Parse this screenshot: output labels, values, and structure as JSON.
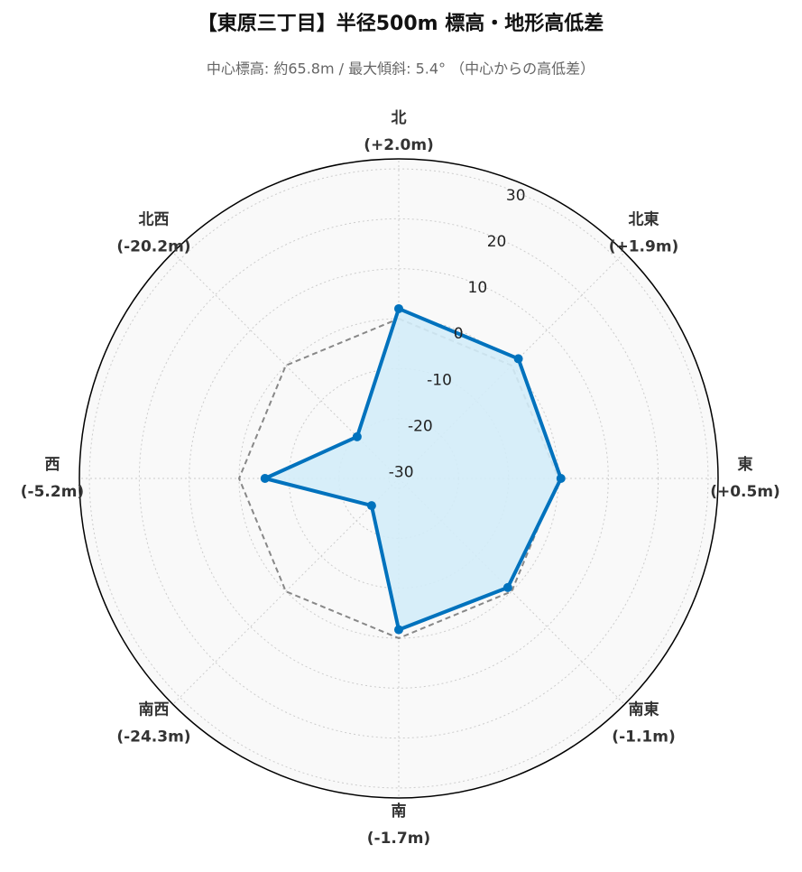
{
  "chart_data": {
    "type": "radar",
    "title": "【東原三丁目】半径500m 標高・地形高低差",
    "subtitle": "中心標高: 約65.8m / 最大傾斜: 5.4° （中心からの高低差）",
    "categories": [
      "北",
      "北東",
      "東",
      "南東",
      "南",
      "南西",
      "西",
      "北西"
    ],
    "values": [
      2.0,
      1.9,
      0.5,
      -1.1,
      -1.7,
      -24.3,
      -5.2,
      -20.2
    ],
    "value_labels": [
      "(+2.0m)",
      "(+1.9m)",
      "(+0.5m)",
      "(-1.1m)",
      "(-1.7m)",
      "(-24.3m)",
      "(-5.2m)",
      "(-20.2m)"
    ],
    "color": "#0072bd",
    "fill": "#d3ecf8",
    "reference_value": 0,
    "ylim": [
      -32,
      32
    ],
    "yticks": [
      -30,
      -20,
      -10,
      0,
      10,
      20,
      30
    ],
    "grid": true
  }
}
